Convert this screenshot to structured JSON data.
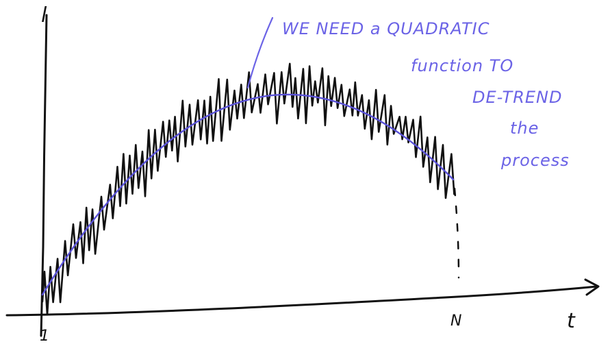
{
  "axes": {
    "y_label": "l",
    "x_label": "t",
    "x_start_tick": "1",
    "x_end_tick": "N"
  },
  "annotation": {
    "lines": [
      "WE NEED a QUADRATIC",
      "function TO",
      "DE-TREND",
      "the",
      "process"
    ]
  },
  "colors": {
    "ink": "#111111",
    "trend": "#5a52d8",
    "note": "#6b63e6"
  }
}
